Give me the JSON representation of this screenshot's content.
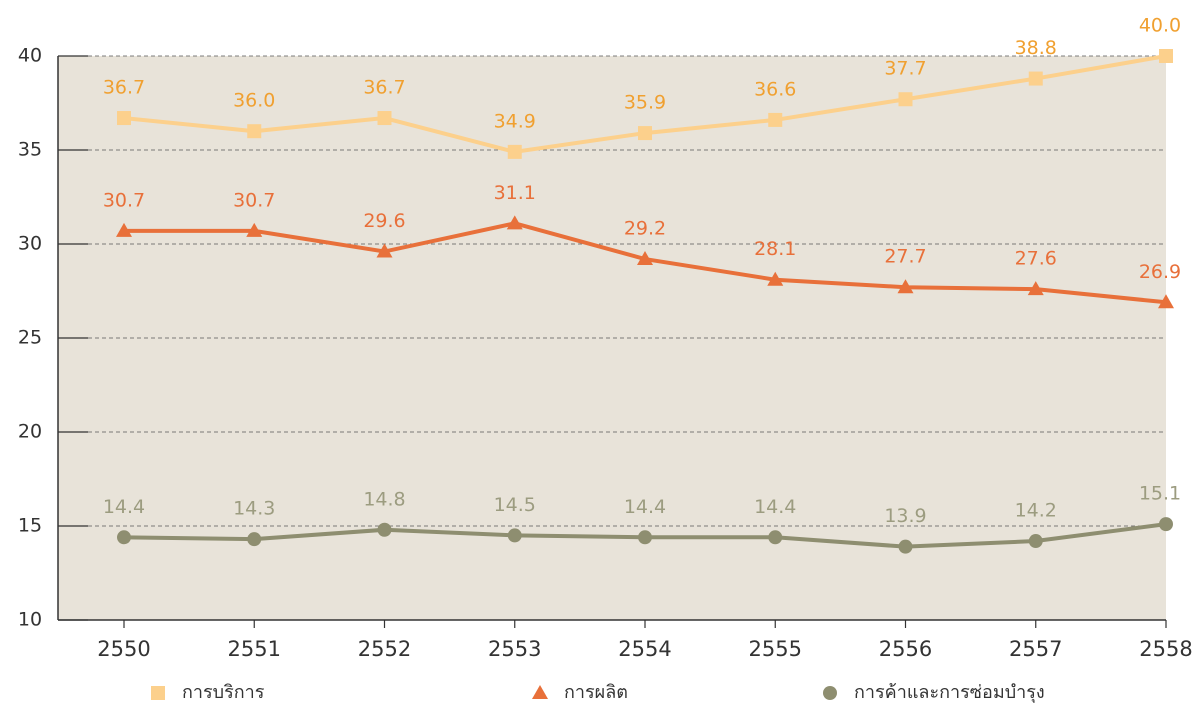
{
  "chart_data": {
    "type": "line",
    "categories": [
      "2550",
      "2551",
      "2552",
      "2553",
      "2554",
      "2555",
      "2556",
      "2557",
      "2558"
    ],
    "series": [
      {
        "name": "การบริการ",
        "color": "#fcd08c",
        "label_color": "#f0a030",
        "marker": "square",
        "values": [
          36.7,
          36.0,
          36.7,
          34.9,
          35.9,
          36.6,
          37.7,
          38.8,
          40.0
        ],
        "value_labels": [
          "36.7",
          "36.0",
          "36.7",
          "34.9",
          "35.9",
          "36.6",
          "37.7",
          "38.8",
          "40.0"
        ]
      },
      {
        "name": "การผลิต",
        "color": "#e8703a",
        "label_color": "#e8703a",
        "marker": "triangle",
        "values": [
          30.7,
          30.7,
          29.6,
          31.1,
          29.2,
          28.1,
          27.7,
          27.6,
          26.9
        ],
        "value_labels": [
          "30.7",
          "30.7",
          "29.6",
          "31.1",
          "29.2",
          "28.1",
          "27.7",
          "27.6",
          "26.9"
        ]
      },
      {
        "name": "การค้าและการซ่อมบำรุง",
        "color": "#8e8e70",
        "label_color": "#9c9c80",
        "marker": "circle",
        "values": [
          14.4,
          14.3,
          14.8,
          14.5,
          14.4,
          14.4,
          13.9,
          14.2,
          15.1
        ],
        "value_labels": [
          "14.4",
          "14.3",
          "14.8",
          "14.5",
          "14.4",
          "14.4",
          "13.9",
          "14.2",
          "15.1"
        ]
      }
    ],
    "ylim": [
      10,
      40
    ],
    "yticks": [
      10,
      15,
      20,
      25,
      30,
      35,
      40
    ],
    "grid": true,
    "background": "#e8e3d9",
    "legend": "bottom"
  }
}
